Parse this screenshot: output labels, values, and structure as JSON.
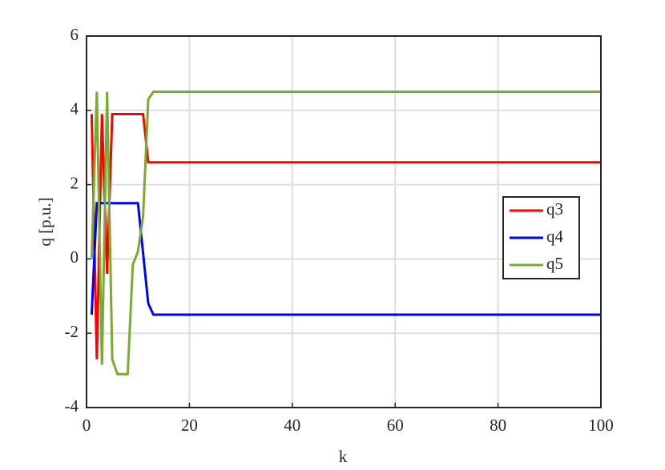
{
  "chart_data": {
    "type": "line",
    "xlabel": "k",
    "ylabel": "q [p.u.]",
    "x": [
      1,
      2,
      3,
      4,
      5,
      6,
      7,
      8,
      9,
      10,
      11,
      12,
      13,
      100
    ],
    "series": [
      {
        "name": "q3",
        "color": "#ff0000",
        "values": [
          3.9,
          -2.7,
          3.9,
          -0.4,
          3.9,
          3.9,
          3.9,
          3.9,
          3.9,
          3.9,
          3.9,
          2.6,
          2.6,
          2.6
        ]
      },
      {
        "name": "q4",
        "color": "#0000ff",
        "values": [
          -1.5,
          1.5,
          1.5,
          1.5,
          1.5,
          1.5,
          1.5,
          1.5,
          1.5,
          1.5,
          0.15,
          -1.2,
          -1.5,
          -1.5
        ]
      },
      {
        "name": "q5",
        "color": "#77ac30",
        "values": [
          0,
          4.5,
          -2.85,
          4.5,
          -2.7,
          -3.1,
          -3.1,
          -3.1,
          -0.15,
          0.2,
          1.15,
          4.3,
          4.5,
          4.5
        ]
      }
    ],
    "xlim": [
      0,
      100
    ],
    "xticks": [
      0,
      20,
      40,
      60,
      80,
      100
    ],
    "ylim": [
      -4,
      6
    ],
    "yticks": [
      -4,
      -2,
      0,
      2,
      4,
      6
    ],
    "grid": true,
    "legend": "east"
  }
}
